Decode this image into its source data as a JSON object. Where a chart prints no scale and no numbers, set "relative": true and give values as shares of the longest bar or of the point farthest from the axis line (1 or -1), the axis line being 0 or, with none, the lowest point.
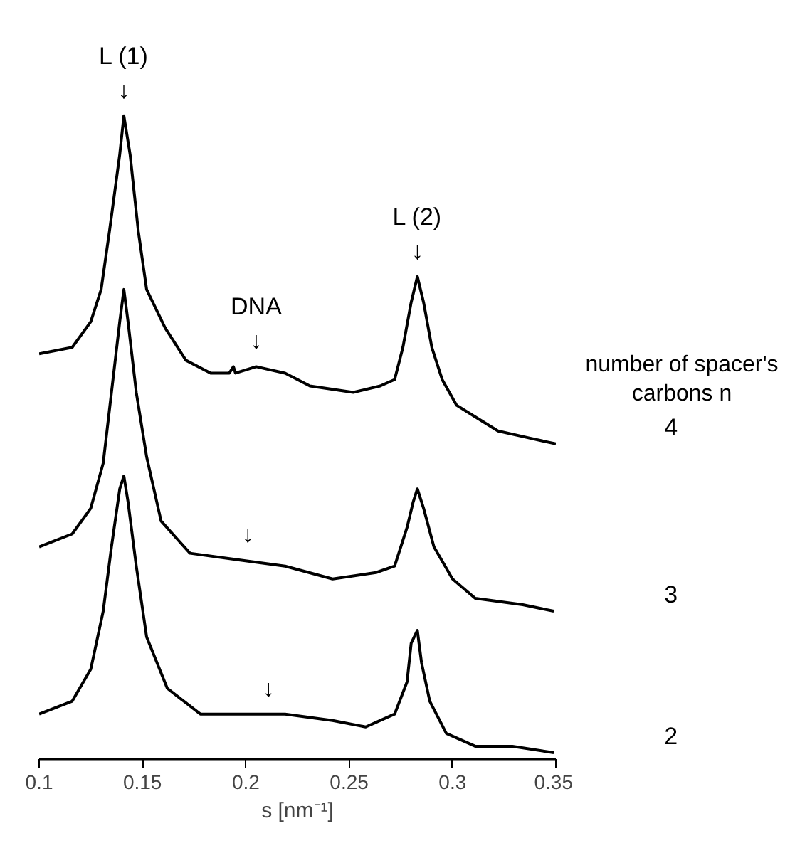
{
  "chart_data": {
    "type": "line",
    "relative": true,
    "xlabel": "s [nm⁻¹]",
    "legend_title": "number of spacer's carbons n",
    "xlim": [
      0.1,
      0.35
    ],
    "xticks": [
      0.1,
      0.15,
      0.2,
      0.25,
      0.3,
      0.35
    ],
    "grid": false,
    "marker": "none",
    "line_style": "solid",
    "series": [
      {
        "name": "4",
        "color": "#000000",
        "x": [
          0.1,
          0.116,
          0.125,
          0.13,
          0.134,
          0.139,
          0.141,
          0.144,
          0.148,
          0.152,
          0.161,
          0.171,
          0.183,
          0.192,
          0.194,
          0.195,
          0.205,
          0.219,
          0.231,
          0.252,
          0.265,
          0.272,
          0.276,
          0.28,
          0.283,
          0.286,
          0.29,
          0.295,
          0.302,
          0.312,
          0.322,
          0.336,
          0.35
        ],
        "values": [
          0.63,
          0.64,
          0.68,
          0.73,
          0.82,
          0.94,
          1.0,
          0.94,
          0.82,
          0.73,
          0.67,
          0.62,
          0.6,
          0.6,
          0.61,
          0.6,
          0.61,
          0.6,
          0.58,
          0.57,
          0.58,
          0.59,
          0.64,
          0.71,
          0.75,
          0.71,
          0.64,
          0.59,
          0.55,
          0.53,
          0.51,
          0.5,
          0.49
        ]
      },
      {
        "name": "3",
        "color": "#000000",
        "x": [
          0.1,
          0.116,
          0.125,
          0.131,
          0.135,
          0.139,
          0.141,
          0.143,
          0.147,
          0.152,
          0.159,
          0.173,
          0.196,
          0.219,
          0.242,
          0.263,
          0.272,
          0.278,
          0.281,
          0.283,
          0.286,
          0.291,
          0.3,
          0.311,
          0.334,
          0.349
        ],
        "values": [
          0.33,
          0.35,
          0.39,
          0.46,
          0.57,
          0.68,
          0.73,
          0.68,
          0.57,
          0.47,
          0.37,
          0.32,
          0.31,
          0.3,
          0.28,
          0.29,
          0.3,
          0.36,
          0.4,
          0.42,
          0.39,
          0.33,
          0.28,
          0.25,
          0.24,
          0.23
        ]
      },
      {
        "name": "2",
        "color": "#000000",
        "x": [
          0.1,
          0.116,
          0.125,
          0.131,
          0.135,
          0.139,
          0.141,
          0.143,
          0.147,
          0.152,
          0.162,
          0.178,
          0.19,
          0.205,
          0.219,
          0.242,
          0.258,
          0.272,
          0.278,
          0.28,
          0.283,
          0.285,
          0.289,
          0.297,
          0.311,
          0.329,
          0.349
        ],
        "values": [
          0.07,
          0.09,
          0.14,
          0.23,
          0.33,
          0.42,
          0.44,
          0.4,
          0.3,
          0.19,
          0.11,
          0.07,
          0.07,
          0.07,
          0.07,
          0.06,
          0.05,
          0.07,
          0.12,
          0.18,
          0.2,
          0.15,
          0.09,
          0.04,
          0.02,
          0.02,
          0.01
        ]
      }
    ],
    "annotations": [
      {
        "text": "↓",
        "x": 0.141,
        "y": 1.0
      },
      {
        "text": "L (1)",
        "x": 0.141,
        "y": 1.0
      },
      {
        "text": "↓",
        "x": 0.283,
        "y": 0.75
      },
      {
        "text": "L (2)",
        "x": 0.283,
        "y": 0.75
      },
      {
        "text": "↓",
        "x": 0.205,
        "y": 0.61
      },
      {
        "text": "DNA",
        "x": 0.205,
        "y": 0.61
      },
      {
        "text": "↓",
        "x": 0.201,
        "y": 0.31
      },
      {
        "text": "↓",
        "x": 0.211,
        "y": 0.07
      }
    ]
  }
}
